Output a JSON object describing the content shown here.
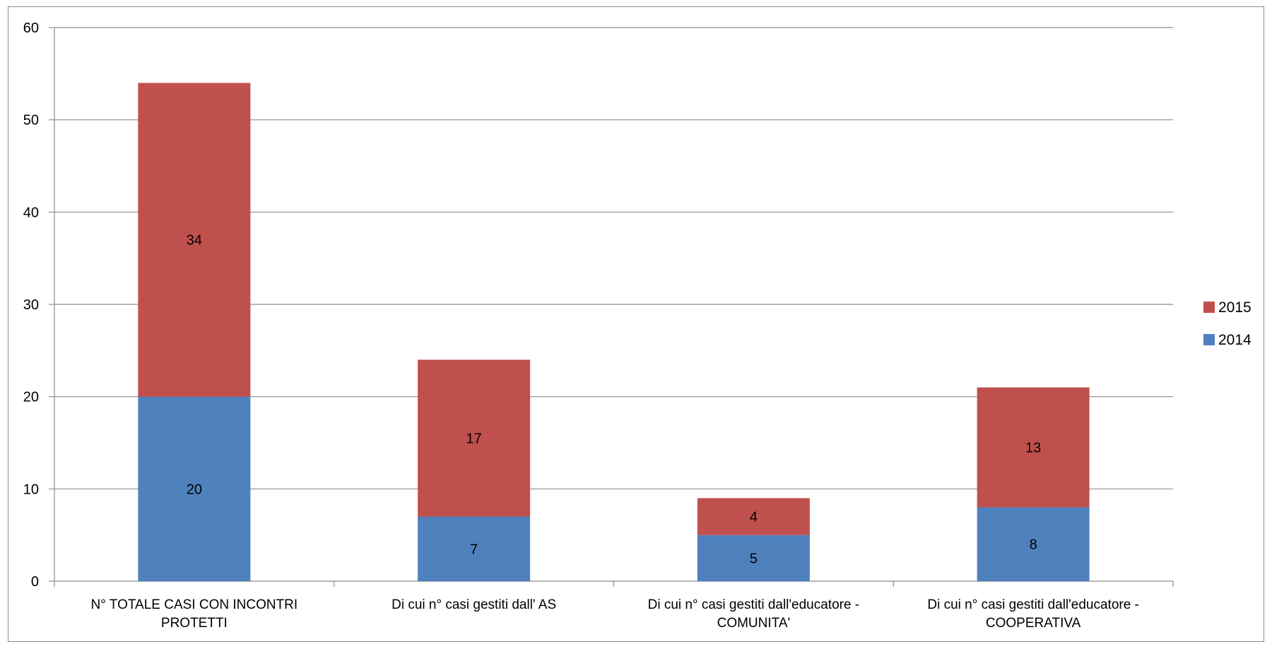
{
  "chart_data": {
    "type": "bar",
    "stacked": true,
    "categories": [
      [
        "N° TOTALE CASI CON INCONTRI",
        "PROTETTI"
      ],
      [
        "Di cui n° casi gestiti dall' AS"
      ],
      [
        "Di cui n° casi gestiti dall'educatore -",
        "COMUNITA'"
      ],
      [
        "Di cui n° casi gestiti dall'educatore -",
        "COOPERATIVA"
      ]
    ],
    "series": [
      {
        "name": "2014",
        "color": "#4f81bd",
        "values": [
          20,
          7,
          5,
          8
        ]
      },
      {
        "name": "2015",
        "color": "#c0504d",
        "values": [
          34,
          17,
          4,
          13
        ]
      }
    ],
    "ylim": [
      0,
      60
    ],
    "yticks": [
      0,
      10,
      20,
      30,
      40,
      50,
      60
    ],
    "grid": true,
    "legend_position": "right",
    "legend_order": [
      "2015",
      "2014"
    ],
    "data_labels": true
  }
}
